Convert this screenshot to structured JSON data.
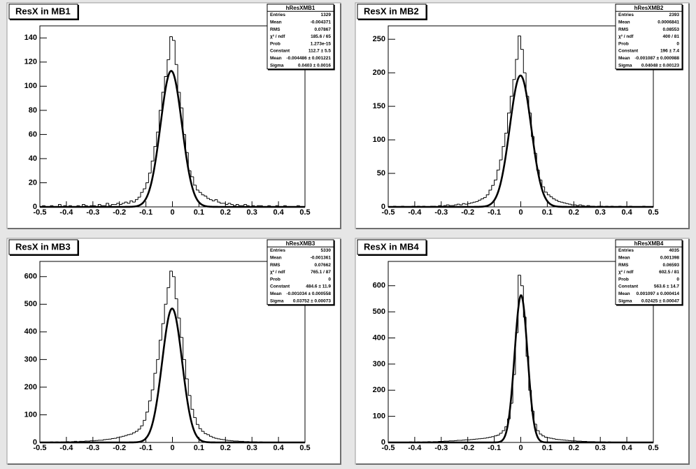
{
  "chart_data": [
    {
      "type": "histogram",
      "title": "ResX in MB1",
      "bins": [
        -0.5,
        -0.49,
        -0.48,
        -0.47,
        -0.46,
        -0.45,
        -0.44,
        -0.43,
        -0.42,
        -0.41,
        -0.4,
        -0.39,
        -0.38,
        -0.37,
        -0.36,
        -0.35,
        -0.34,
        -0.33,
        -0.32,
        -0.31,
        -0.3,
        -0.29,
        -0.28,
        -0.27,
        -0.26,
        -0.25,
        -0.24,
        -0.23,
        -0.22,
        -0.21,
        -0.2,
        -0.19,
        -0.18,
        -0.17,
        -0.16,
        -0.15,
        -0.14,
        -0.13,
        -0.12,
        -0.11,
        -0.1,
        -0.09,
        -0.08,
        -0.07,
        -0.06,
        -0.05,
        -0.04,
        -0.03,
        -0.02,
        -0.01,
        0,
        0.01,
        0.02,
        0.03,
        0.04,
        0.05,
        0.06,
        0.07,
        0.08,
        0.09,
        0.1,
        0.11,
        0.12,
        0.13,
        0.14,
        0.15,
        0.16,
        0.17,
        0.18,
        0.19,
        0.2,
        0.21,
        0.22,
        0.23,
        0.24,
        0.25,
        0.26,
        0.27,
        0.28,
        0.29,
        0.3,
        0.31,
        0.32,
        0.33,
        0.34,
        0.35,
        0.36,
        0.37,
        0.38,
        0.39,
        0.4,
        0.41,
        0.42,
        0.43,
        0.44,
        0.45,
        0.46,
        0.47,
        0.48,
        0.49,
        0.5
      ],
      "values": [
        0,
        1,
        0,
        0,
        1,
        0,
        0,
        2,
        0,
        1,
        0,
        1,
        0,
        0,
        1,
        0,
        2,
        1,
        0,
        1,
        1,
        0,
        2,
        1,
        1,
        3,
        1,
        2,
        2,
        3,
        2,
        3,
        4,
        3,
        5,
        4,
        6,
        8,
        12,
        15,
        20,
        28,
        38,
        50,
        62,
        80,
        95,
        108,
        122,
        141,
        138,
        118,
        95,
        82,
        60,
        45,
        30,
        25,
        18,
        14,
        12,
        10,
        9,
        7,
        6,
        5,
        6,
        4,
        3,
        3,
        2,
        3,
        2,
        1,
        2,
        1,
        1,
        2,
        1,
        0,
        1,
        0,
        1,
        1,
        0,
        0,
        1,
        0,
        0,
        1,
        0,
        0,
        1,
        0,
        0,
        0,
        0,
        1,
        0,
        0
      ],
      "xlim": [
        -0.5,
        0.5
      ],
      "xticks": [
        -0.5,
        -0.4,
        -0.3,
        -0.2,
        -0.1,
        0,
        0.1,
        0.2,
        0.3,
        0.4,
        0.5
      ],
      "ylim": [
        0,
        150
      ],
      "yticks": [
        0,
        20,
        40,
        60,
        80,
        100,
        120,
        140
      ],
      "color": "#000000",
      "fit": {
        "constant": 112.7,
        "mean": -0.004486,
        "sigma": 0.0403
      },
      "stats": {
        "title": "hResXMB1",
        "rows": [
          {
            "label": "Entries",
            "value": "1329"
          },
          {
            "label": "Mean",
            "value": "-0.004371"
          },
          {
            "label": "RMS",
            "value": "0.07867"
          },
          {
            "label": "χ² / ndf",
            "value": "185.6 / 65"
          },
          {
            "label": "Prob",
            "value": "1.273e-15"
          },
          {
            "label": "Constant",
            "value": "112.7 ± 5.5"
          },
          {
            "label": "Mean",
            "value": "-0.004486 ± 0.001221"
          },
          {
            "label": "Sigma",
            "value": "0.0403 ± 0.0016"
          }
        ]
      }
    },
    {
      "type": "histogram",
      "title": "ResX in MB2",
      "bins": [
        -0.5,
        -0.49,
        -0.48,
        -0.47,
        -0.46,
        -0.45,
        -0.44,
        -0.43,
        -0.42,
        -0.41,
        -0.4,
        -0.39,
        -0.38,
        -0.37,
        -0.36,
        -0.35,
        -0.34,
        -0.33,
        -0.32,
        -0.31,
        -0.3,
        -0.29,
        -0.28,
        -0.27,
        -0.26,
        -0.25,
        -0.24,
        -0.23,
        -0.22,
        -0.21,
        -0.2,
        -0.19,
        -0.18,
        -0.17,
        -0.16,
        -0.15,
        -0.14,
        -0.13,
        -0.12,
        -0.11,
        -0.1,
        -0.09,
        -0.08,
        -0.07,
        -0.06,
        -0.05,
        -0.04,
        -0.03,
        -0.02,
        -0.01,
        0,
        0.01,
        0.02,
        0.03,
        0.04,
        0.05,
        0.06,
        0.07,
        0.08,
        0.09,
        0.1,
        0.11,
        0.12,
        0.13,
        0.14,
        0.15,
        0.16,
        0.17,
        0.18,
        0.19,
        0.2,
        0.21,
        0.22,
        0.23,
        0.24,
        0.25,
        0.26,
        0.27,
        0.28,
        0.29,
        0.3,
        0.31,
        0.32,
        0.33,
        0.34,
        0.35,
        0.36,
        0.37,
        0.38,
        0.39,
        0.4,
        0.41,
        0.42,
        0.43,
        0.44,
        0.45,
        0.46,
        0.47,
        0.48,
        0.49,
        0.5
      ],
      "values": [
        0,
        0,
        1,
        0,
        0,
        1,
        0,
        0,
        0,
        1,
        0,
        1,
        0,
        1,
        0,
        0,
        1,
        1,
        0,
        2,
        1,
        2,
        3,
        2,
        2,
        3,
        4,
        3,
        5,
        4,
        5,
        6,
        7,
        8,
        10,
        12,
        14,
        18,
        25,
        32,
        40,
        55,
        70,
        90,
        110,
        140,
        165,
        190,
        220,
        255,
        235,
        200,
        165,
        140,
        105,
        80,
        55,
        40,
        30,
        22,
        18,
        15,
        12,
        10,
        8,
        7,
        6,
        5,
        4,
        3,
        3,
        2,
        3,
        2,
        1,
        2,
        1,
        1,
        0,
        1,
        1,
        0,
        1,
        0,
        1,
        0,
        0,
        1,
        0,
        0,
        0,
        1,
        0,
        0,
        0,
        0,
        1,
        0,
        0,
        0
      ],
      "xlim": [
        -0.5,
        0.5
      ],
      "xticks": [
        -0.5,
        -0.4,
        -0.3,
        -0.2,
        -0.1,
        0,
        0.1,
        0.2,
        0.3,
        0.4,
        0.5
      ],
      "ylim": [
        0,
        270
      ],
      "yticks": [
        0,
        50,
        100,
        150,
        200,
        250
      ],
      "color": "#000000",
      "fit": {
        "constant": 196,
        "mean": -0.001087,
        "sigma": 0.04048
      },
      "stats": {
        "title": "hResXMB2",
        "rows": [
          {
            "label": "Entries",
            "value": "2393"
          },
          {
            "label": "Mean",
            "value": "0.0006841"
          },
          {
            "label": "RMS",
            "value": "0.08553"
          },
          {
            "label": "χ² / ndf",
            "value": "400 / 81"
          },
          {
            "label": "Prob",
            "value": "0"
          },
          {
            "label": "Constant",
            "value": "196 ± 7.4"
          },
          {
            "label": "Mean",
            "value": "-0.001087 ± 0.000988"
          },
          {
            "label": "Sigma",
            "value": "0.04048 ± 0.00123"
          }
        ]
      }
    },
    {
      "type": "histogram",
      "title": "ResX in MB3",
      "bins": [
        -0.5,
        -0.49,
        -0.48,
        -0.47,
        -0.46,
        -0.45,
        -0.44,
        -0.43,
        -0.42,
        -0.41,
        -0.4,
        -0.39,
        -0.38,
        -0.37,
        -0.36,
        -0.35,
        -0.34,
        -0.33,
        -0.32,
        -0.31,
        -0.3,
        -0.29,
        -0.28,
        -0.27,
        -0.26,
        -0.25,
        -0.24,
        -0.23,
        -0.22,
        -0.21,
        -0.2,
        -0.19,
        -0.18,
        -0.17,
        -0.16,
        -0.15,
        -0.14,
        -0.13,
        -0.12,
        -0.11,
        -0.1,
        -0.09,
        -0.08,
        -0.07,
        -0.06,
        -0.05,
        -0.04,
        -0.03,
        -0.02,
        -0.01,
        0,
        0.01,
        0.02,
        0.03,
        0.04,
        0.05,
        0.06,
        0.07,
        0.08,
        0.09,
        0.1,
        0.11,
        0.12,
        0.13,
        0.14,
        0.15,
        0.16,
        0.17,
        0.18,
        0.19,
        0.2,
        0.21,
        0.22,
        0.23,
        0.24,
        0.25,
        0.26,
        0.27,
        0.28,
        0.29,
        0.3,
        0.31,
        0.32,
        0.33,
        0.34,
        0.35,
        0.36,
        0.37,
        0.38,
        0.39,
        0.4,
        0.41,
        0.42,
        0.43,
        0.44,
        0.45,
        0.46,
        0.47,
        0.48,
        0.49,
        0.5
      ],
      "values": [
        1,
        0,
        1,
        1,
        2,
        1,
        2,
        1,
        2,
        2,
        3,
        2,
        3,
        4,
        3,
        4,
        4,
        5,
        5,
        6,
        6,
        7,
        8,
        8,
        10,
        11,
        12,
        14,
        15,
        18,
        20,
        22,
        25,
        28,
        30,
        35,
        40,
        48,
        60,
        80,
        110,
        150,
        190,
        250,
        300,
        370,
        430,
        500,
        560,
        620,
        600,
        520,
        450,
        380,
        300,
        230,
        170,
        120,
        90,
        65,
        50,
        40,
        32,
        28,
        22,
        18,
        15,
        13,
        11,
        10,
        8,
        7,
        6,
        5,
        5,
        4,
        4,
        3,
        3,
        2,
        2,
        2,
        1,
        2,
        1,
        1,
        1,
        0,
        1,
        0,
        1,
        0,
        0,
        1,
        0,
        0,
        0,
        1,
        0,
        0
      ],
      "xlim": [
        -0.5,
        0.5
      ],
      "xticks": [
        -0.5,
        -0.4,
        -0.3,
        -0.2,
        -0.1,
        0,
        0.1,
        0.2,
        0.3,
        0.4,
        0.5
      ],
      "ylim": [
        0,
        655
      ],
      "yticks": [
        0,
        100,
        200,
        300,
        400,
        500,
        600
      ],
      "color": "#000000",
      "fit": {
        "constant": 484.6,
        "mean": -0.001034,
        "sigma": 0.03752
      },
      "stats": {
        "title": "hResXMB3",
        "rows": [
          {
            "label": "Entries",
            "value": "5330"
          },
          {
            "label": "Mean",
            "value": "-0.001361"
          },
          {
            "label": "RMS",
            "value": "0.07662"
          },
          {
            "label": "χ² / ndf",
            "value": "765.1 / 87"
          },
          {
            "label": "Prob",
            "value": "0"
          },
          {
            "label": "Constant",
            "value": "484.6 ± 11.9"
          },
          {
            "label": "Mean",
            "value": "-0.001034 ± 0.000558"
          },
          {
            "label": "Sigma",
            "value": "0.03752 ± 0.00073"
          }
        ]
      }
    },
    {
      "type": "histogram",
      "title": "ResX in MB4",
      "bins": [
        -0.5,
        -0.49,
        -0.48,
        -0.47,
        -0.46,
        -0.45,
        -0.44,
        -0.43,
        -0.42,
        -0.41,
        -0.4,
        -0.39,
        -0.38,
        -0.37,
        -0.36,
        -0.35,
        -0.34,
        -0.33,
        -0.32,
        -0.31,
        -0.3,
        -0.29,
        -0.28,
        -0.27,
        -0.26,
        -0.25,
        -0.24,
        -0.23,
        -0.22,
        -0.21,
        -0.2,
        -0.19,
        -0.18,
        -0.17,
        -0.16,
        -0.15,
        -0.14,
        -0.13,
        -0.12,
        -0.11,
        -0.1,
        -0.09,
        -0.08,
        -0.07,
        -0.06,
        -0.05,
        -0.04,
        -0.03,
        -0.02,
        -0.01,
        0,
        0.01,
        0.02,
        0.03,
        0.04,
        0.05,
        0.06,
        0.07,
        0.08,
        0.09,
        0.1,
        0.11,
        0.12,
        0.13,
        0.14,
        0.15,
        0.16,
        0.17,
        0.18,
        0.19,
        0.2,
        0.21,
        0.22,
        0.23,
        0.24,
        0.25,
        0.26,
        0.27,
        0.28,
        0.29,
        0.3,
        0.31,
        0.32,
        0.33,
        0.34,
        0.35,
        0.36,
        0.37,
        0.38,
        0.39,
        0.4,
        0.41,
        0.42,
        0.43,
        0.44,
        0.45,
        0.46,
        0.47,
        0.48,
        0.49,
        0.5
      ],
      "values": [
        0,
        1,
        0,
        1,
        1,
        0,
        1,
        1,
        2,
        1,
        1,
        2,
        1,
        2,
        2,
        3,
        2,
        3,
        3,
        4,
        4,
        5,
        5,
        6,
        6,
        7,
        8,
        8,
        9,
        10,
        10,
        11,
        12,
        13,
        14,
        15,
        16,
        18,
        20,
        22,
        25,
        28,
        35,
        45,
        60,
        90,
        150,
        260,
        420,
        640,
        600,
        480,
        330,
        200,
        120,
        70,
        45,
        32,
        25,
        20,
        18,
        16,
        14,
        12,
        11,
        10,
        9,
        8,
        7,
        6,
        6,
        5,
        5,
        4,
        4,
        3,
        3,
        3,
        2,
        2,
        2,
        2,
        1,
        2,
        1,
        1,
        1,
        1,
        0,
        1,
        0,
        1,
        0,
        0,
        1,
        0,
        0,
        0,
        0,
        0
      ],
      "xlim": [
        -0.5,
        0.5
      ],
      "xticks": [
        -0.5,
        -0.4,
        -0.3,
        -0.2,
        -0.1,
        0,
        0.1,
        0.2,
        0.3,
        0.4,
        0.5
      ],
      "ylim": [
        0,
        693
      ],
      "yticks": [
        0,
        100,
        200,
        300,
        400,
        500,
        600
      ],
      "color": "#000000",
      "fit": {
        "constant": 563.6,
        "mean": 0.001097,
        "sigma": 0.02425
      },
      "stats": {
        "title": "hResXMB4",
        "rows": [
          {
            "label": "Entries",
            "value": "4035"
          },
          {
            "label": "Mean",
            "value": "0.001398"
          },
          {
            "label": "RMS",
            "value": "0.06593"
          },
          {
            "label": "χ² / ndf",
            "value": "602.5 / 81"
          },
          {
            "label": "Prob",
            "value": "0"
          },
          {
            "label": "Constant",
            "value": "563.6 ± 14.7"
          },
          {
            "label": "Mean",
            "value": "0.001097 ± 0.000414"
          },
          {
            "label": "Sigma",
            "value": "0.02425 ± 0.00047"
          }
        ]
      }
    }
  ]
}
